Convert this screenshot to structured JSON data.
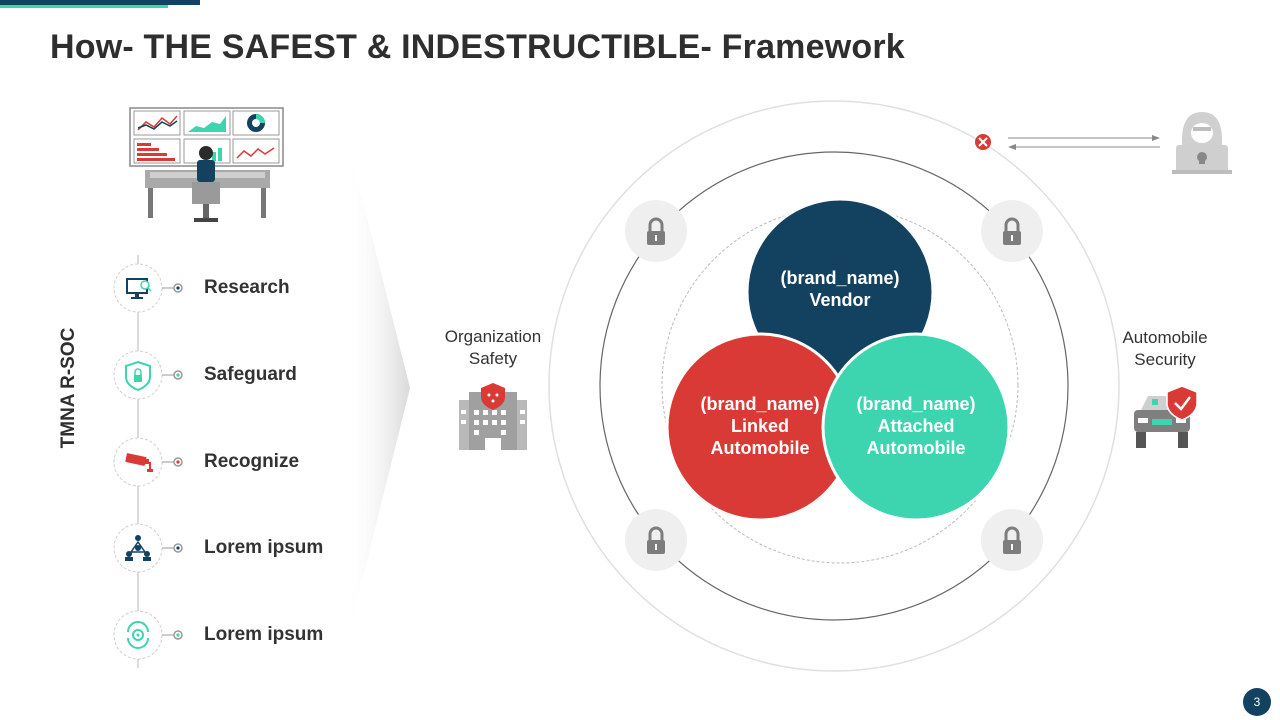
{
  "slide": {
    "title": "How- THE SAFEST & INDESTRUCTIBLE- Framework",
    "page_number": "3"
  },
  "sidebar": {
    "vertical_label": "TMNA R-SOC",
    "steps": [
      {
        "label": "Research",
        "icon": "monitor-search-icon"
      },
      {
        "label": "Safeguard",
        "icon": "shield-lock-icon"
      },
      {
        "label": "Recognize",
        "icon": "cctv-camera-icon"
      },
      {
        "label": "Lorem ipsum",
        "icon": "team-network-icon"
      },
      {
        "label": "Lorem ipsum",
        "icon": "gear-cycle-icon"
      }
    ]
  },
  "diagram": {
    "left_node": {
      "label_line1": "Organization",
      "label_line2": "Safety",
      "icon": "building-shield-icon"
    },
    "right_node": {
      "label_line1": "Automobile",
      "label_line2": "Security",
      "icon": "car-shield-icon"
    },
    "vendor": {
      "line1": "(brand_name)",
      "line2": "Vendor",
      "color": "#12425f"
    },
    "linked": {
      "line1": "(brand_name)",
      "line2": "Linked",
      "line3": "Automobile",
      "color": "#d93a35"
    },
    "attached": {
      "line1": "(brand_name)",
      "line2": "Attached",
      "line3": "Automobile",
      "color": "#3dd5b0"
    }
  }
}
